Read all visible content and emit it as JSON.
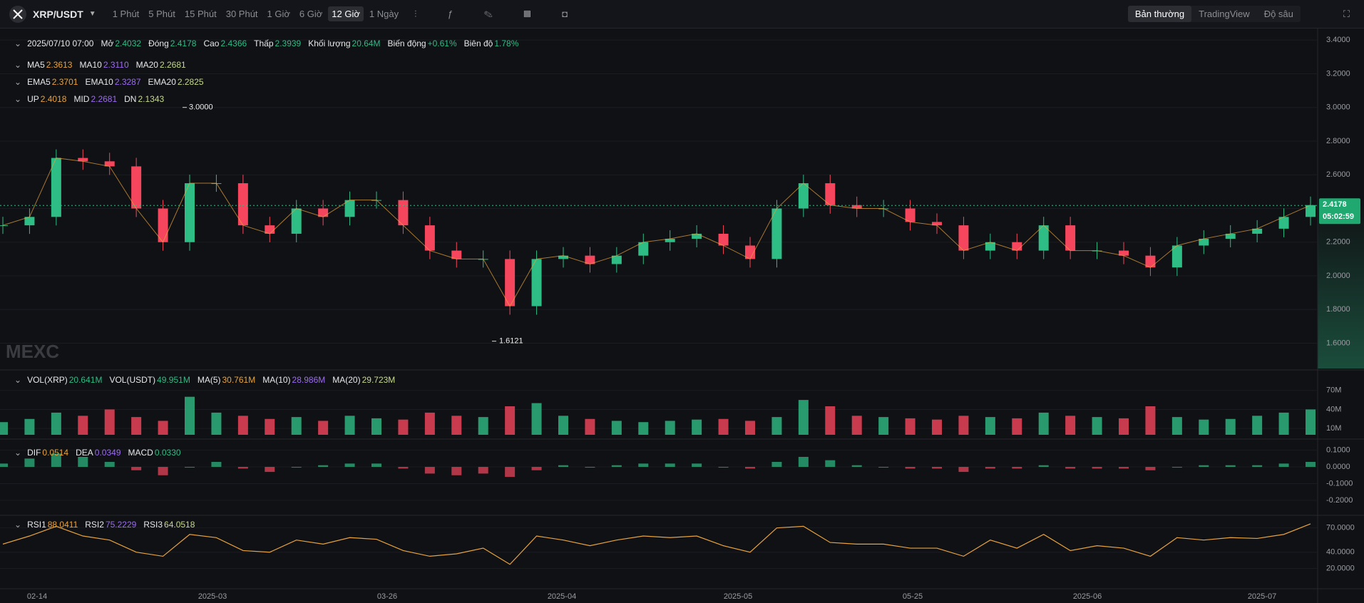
{
  "toolbar": {
    "symbol": "XRP/USDT",
    "intervals": [
      "1 Phút",
      "5 Phút",
      "15 Phút",
      "30 Phút",
      "1 Giờ",
      "6 Giờ",
      "12 Giờ",
      "1 Ngày"
    ],
    "active_interval": 6,
    "views": [
      "Bản thường",
      "TradingView",
      "Độ sâu"
    ],
    "active_view": 0
  },
  "info": {
    "datetime": "2025/07/10 07:00",
    "fields": [
      {
        "label": "Mở",
        "value": "2.4032"
      },
      {
        "label": "Đóng",
        "value": "2.4178"
      },
      {
        "label": "Cao",
        "value": "2.4366"
      },
      {
        "label": "Thấp",
        "value": "2.3939"
      },
      {
        "label": "Khối lượng",
        "value": "20.64M"
      },
      {
        "label": "Biến động",
        "value": "+0.61%"
      },
      {
        "label": "Biên độ",
        "value": "1.78%"
      }
    ]
  },
  "indicators": {
    "ma": [
      {
        "label": "MA5",
        "value": "2.3613",
        "color": "#e8a33d"
      },
      {
        "label": "MA10",
        "value": "2.3110",
        "color": "#9b6cf0"
      },
      {
        "label": "MA20",
        "value": "2.2681",
        "color": "#c6d98a"
      }
    ],
    "ema": [
      {
        "label": "EMA5",
        "value": "2.3701",
        "color": "#e8a33d"
      },
      {
        "label": "EMA10",
        "value": "2.3287",
        "color": "#9b6cf0"
      },
      {
        "label": "EMA20",
        "value": "2.2825",
        "color": "#c6d98a"
      }
    ],
    "boll": [
      {
        "label": "UP",
        "value": "2.4018",
        "color": "#e8a33d"
      },
      {
        "label": "MID",
        "value": "2.2681",
        "color": "#9b6cf0"
      },
      {
        "label": "DN",
        "value": "2.1343",
        "color": "#c6d98a"
      }
    ],
    "vol": [
      {
        "label": "VOL(XRP)",
        "value": "20.641M",
        "color": "#2ebd85"
      },
      {
        "label": "VOL(USDT)",
        "value": "49.951M",
        "color": "#2ebd85"
      },
      {
        "label": "MA(5)",
        "value": "30.761M",
        "color": "#e8a33d"
      },
      {
        "label": "MA(10)",
        "value": "28.986M",
        "color": "#9b6cf0"
      },
      {
        "label": "MA(20)",
        "value": "29.723M",
        "color": "#c6d98a"
      }
    ],
    "macd": [
      {
        "label": "DIF",
        "value": "0.0514",
        "color": "#e8a33d"
      },
      {
        "label": "DEA",
        "value": "0.0349",
        "color": "#9b6cf0"
      },
      {
        "label": "MACD",
        "value": "0.0330",
        "color": "#2ebd85"
      }
    ],
    "rsi": [
      {
        "label": "RSI1",
        "value": "88.0411",
        "color": "#e8a33d"
      },
      {
        "label": "RSI2",
        "value": "75.2229",
        "color": "#9b6cf0"
      },
      {
        "label": "RSI3",
        "value": "64.0518",
        "color": "#c6d98a"
      }
    ]
  },
  "price": {
    "ylim": [
      1.45,
      3.46
    ],
    "yticks": [
      {
        "value": 3.4,
        "label": "3.4000"
      },
      {
        "value": 3.2,
        "label": "3.2000"
      },
      {
        "value": 3.0,
        "label": "3.0000"
      },
      {
        "value": 2.8,
        "label": "2.8000"
      },
      {
        "value": 2.6,
        "label": "2.6000"
      },
      {
        "value": 2.4,
        "label": "2.4000"
      },
      {
        "value": 2.2,
        "label": "2.2000"
      },
      {
        "value": 2.0,
        "label": "2.0000"
      },
      {
        "value": 1.8,
        "label": "1.8000"
      },
      {
        "value": 1.6,
        "label": "1.6000"
      }
    ],
    "values": [
      2.3,
      2.35,
      2.7,
      2.68,
      2.65,
      2.4,
      2.2,
      2.55,
      2.55,
      2.3,
      2.25,
      2.4,
      2.35,
      2.45,
      2.45,
      2.3,
      2.15,
      2.1,
      2.1,
      1.82,
      2.1,
      2.12,
      2.07,
      2.12,
      2.2,
      2.22,
      2.25,
      2.18,
      2.1,
      2.4,
      2.55,
      2.42,
      2.4,
      2.4,
      2.32,
      2.3,
      2.15,
      2.2,
      2.15,
      2.3,
      2.15,
      2.15,
      2.12,
      2.05,
      2.18,
      2.22,
      2.25,
      2.28,
      2.35,
      2.42
    ],
    "up_color": "#2ebd85",
    "down_color": "#f6465d",
    "last": {
      "value": 2.4178,
      "label": "2.4178"
    },
    "countdown": "05:02:59",
    "high": {
      "value": 3.0,
      "label": "3.0000"
    },
    "low": {
      "value": 1.6121,
      "label": "1.6121"
    }
  },
  "volume": {
    "ylim": [
      0,
      99
    ],
    "yticks": [
      {
        "value": 70,
        "label": "70M"
      },
      {
        "value": 40,
        "label": "40M"
      },
      {
        "value": 10,
        "label": "10M"
      }
    ],
    "values": [
      20,
      25,
      35,
      30,
      40,
      28,
      22,
      60,
      35,
      30,
      25,
      28,
      22,
      30,
      26,
      24,
      35,
      30,
      28,
      45,
      50,
      30,
      25,
      22,
      20,
      22,
      24,
      25,
      22,
      28,
      55,
      45,
      30,
      28,
      26,
      24,
      30,
      28,
      26,
      35,
      30,
      28,
      26,
      45,
      28,
      24,
      25,
      30,
      35,
      40
    ]
  },
  "macd": {
    "ylim": [
      -0.277,
      0.141
    ],
    "yticks": [
      {
        "value": 0.1,
        "label": "0.1000"
      },
      {
        "value": 0,
        "label": "0.0000"
      },
      {
        "value": -0.1,
        "label": "-0.1000"
      },
      {
        "value": -0.2,
        "label": "-0.2000"
      }
    ],
    "values": [
      0.02,
      0.05,
      0.08,
      0.06,
      0.03,
      -0.02,
      -0.05,
      0.0,
      0.03,
      -0.01,
      -0.03,
      0.0,
      0.01,
      0.02,
      0.02,
      -0.01,
      -0.04,
      -0.05,
      -0.04,
      -0.06,
      -0.02,
      0.01,
      0.0,
      0.01,
      0.02,
      0.02,
      0.02,
      0.0,
      -0.01,
      0.03,
      0.06,
      0.04,
      0.01,
      0.0,
      -0.01,
      -0.01,
      -0.03,
      -0.01,
      -0.01,
      0.01,
      -0.01,
      -0.01,
      -0.01,
      -0.02,
      0.0,
      0.01,
      0.01,
      0.01,
      0.02,
      0.03
    ]
  },
  "rsi": {
    "ylim": [
      -2.5,
      82.9
    ],
    "yticks": [
      {
        "value": 70,
        "label": "70.0000"
      },
      {
        "value": 40,
        "label": "40.0000"
      },
      {
        "value": 20,
        "label": "20.0000"
      }
    ],
    "values": [
      50,
      60,
      72,
      60,
      55,
      40,
      35,
      62,
      58,
      42,
      40,
      55,
      50,
      58,
      56,
      42,
      35,
      38,
      45,
      25,
      60,
      55,
      48,
      55,
      60,
      58,
      60,
      48,
      40,
      70,
      72,
      52,
      50,
      50,
      45,
      45,
      35,
      55,
      45,
      62,
      42,
      48,
      45,
      35,
      58,
      55,
      58,
      57,
      62,
      75
    ]
  },
  "x_labels": [
    "02-14",
    "2025-03",
    "03-26",
    "2025-04",
    "2025-05",
    "05-25",
    "2025-06",
    "2025-07"
  ],
  "watermark": "MEXC"
}
